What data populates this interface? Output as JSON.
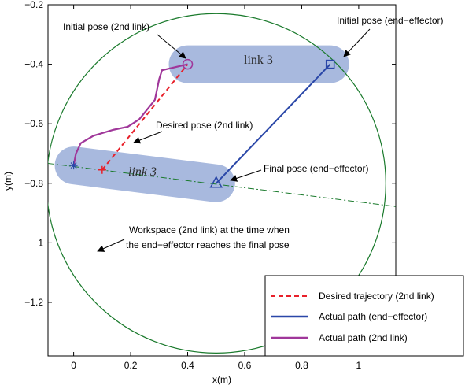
{
  "chart_data": {
    "type": "line",
    "xlabel": "x(m)",
    "ylabel": "y(m)",
    "xlim": [
      -0.09,
      1.13
    ],
    "ylim": [
      -1.38,
      -0.2
    ],
    "y_inverted": false,
    "grid": false,
    "legend_placement": "bottom-right",
    "xticks": [
      0,
      0.2,
      0.4,
      0.6,
      0.8,
      1
    ],
    "xtick_labels": [
      "0",
      "0.2",
      "0.4",
      "0.6",
      "0.8",
      "1"
    ],
    "yticks": [
      -0.2,
      -0.4,
      -0.6,
      -0.8,
      -1,
      -1.2
    ],
    "ytick_labels": [
      "−0.2",
      "−0.4",
      "−0.6",
      "−0.8",
      "−1",
      "−1.2"
    ],
    "series": [
      {
        "name": "Desired trajectory (2nd link)",
        "color": "#e8202a",
        "style": "dashed",
        "x": [
          0.1,
          0.4
        ],
        "y": [
          -0.755,
          -0.4
        ]
      },
      {
        "name": "Actual path (end−effector)",
        "color": "#2a47a8",
        "style": "solid",
        "x": [
          0.9,
          0.5
        ],
        "y": [
          -0.4,
          -0.8
        ]
      },
      {
        "name": "Actual path (2nd link)",
        "color": "#a0379a",
        "style": "solid",
        "x": [
          0.4,
          0.31,
          0.3,
          0.285,
          0.23,
          0.19,
          0.14,
          0.07,
          0.025,
          0.008,
          0.0
        ],
        "y": [
          -0.4,
          -0.42,
          -0.45,
          -0.52,
          -0.585,
          -0.61,
          -0.62,
          -0.64,
          -0.665,
          -0.7,
          -0.74
        ]
      }
    ],
    "workspace_circle": {
      "cx": 0.5,
      "cy": -0.8,
      "r": 0.595,
      "color": "#1a7a2c"
    },
    "workspace_line": {
      "color": "#1a7a2c",
      "style": "dash-dot",
      "points": [
        [
          -0.09,
          -0.733
        ],
        [
          1.13,
          -0.878
        ]
      ]
    },
    "links": [
      {
        "label": "link 3",
        "from": [
          0.4,
          -0.4
        ],
        "to": [
          0.9,
          -0.4
        ],
        "color": "#a8b9de"
      },
      {
        "label": "link 3",
        "from": [
          0.0,
          -0.74
        ],
        "to": [
          0.5,
          -0.8
        ],
        "color": "#a8b9de"
      }
    ],
    "markers": [
      {
        "shape": "circle",
        "x": 0.4,
        "y": -0.4,
        "color": "#a0379a"
      },
      {
        "shape": "square",
        "x": 0.9,
        "y": -0.4,
        "color": "#2a47a8"
      },
      {
        "shape": "triangle",
        "x": 0.5,
        "y": -0.8,
        "color": "#2a47a8"
      },
      {
        "shape": "plus",
        "x": 0.1,
        "y": -0.755,
        "color": "#e8202a"
      },
      {
        "shape": "star",
        "x": 0.0,
        "y": -0.74,
        "color": "#2a47a8"
      }
    ],
    "annotations": [
      {
        "text": "Initial pose (2nd link)",
        "target": [
          0.4,
          -0.4
        ]
      },
      {
        "text": "Initial pose (end−effector)",
        "target": [
          0.9,
          -0.4
        ]
      },
      {
        "text": "Desired pose (2nd link)",
        "target": [
          0.185,
          -0.665
        ]
      },
      {
        "text": "Final pose (end−effector)",
        "target": [
          0.5,
          -0.8
        ]
      },
      {
        "text": "Workspace (2nd link) at the time when",
        "target": [
          0.08,
          -1.05
        ]
      },
      {
        "text": "the end−effector reaches the final pose",
        "target": null
      }
    ]
  }
}
